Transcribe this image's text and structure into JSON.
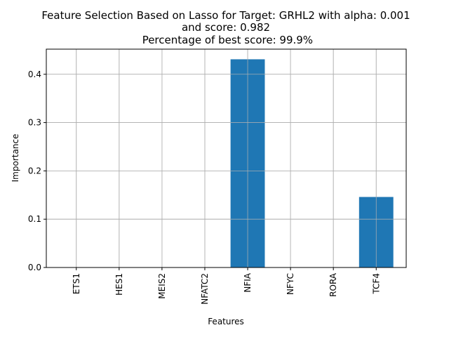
{
  "chart_data": {
    "type": "bar",
    "title_lines": [
      "Feature Selection Based on Lasso for Target: GRHL2 with alpha: 0.001",
      "and score: 0.982",
      " Percentage of best score: 99.9%"
    ],
    "xlabel": "Features",
    "ylabel": "Importance",
    "categories": [
      "ETS1",
      "HES1",
      "MEIS2",
      "NFATC2",
      "NFIA",
      "NFYC",
      "RORA",
      "TCF4"
    ],
    "values": [
      0.0,
      0.0,
      0.0,
      0.0,
      0.431,
      0.0,
      0.0,
      0.146
    ],
    "ylim": [
      0,
      0.452
    ],
    "yticks": [
      0.0,
      0.1,
      0.2,
      0.3,
      0.4
    ],
    "ytick_labels": [
      "0.0",
      "0.1",
      "0.2",
      "0.3",
      "0.4"
    ],
    "grid": true,
    "bar_color": "#1f77b4"
  }
}
